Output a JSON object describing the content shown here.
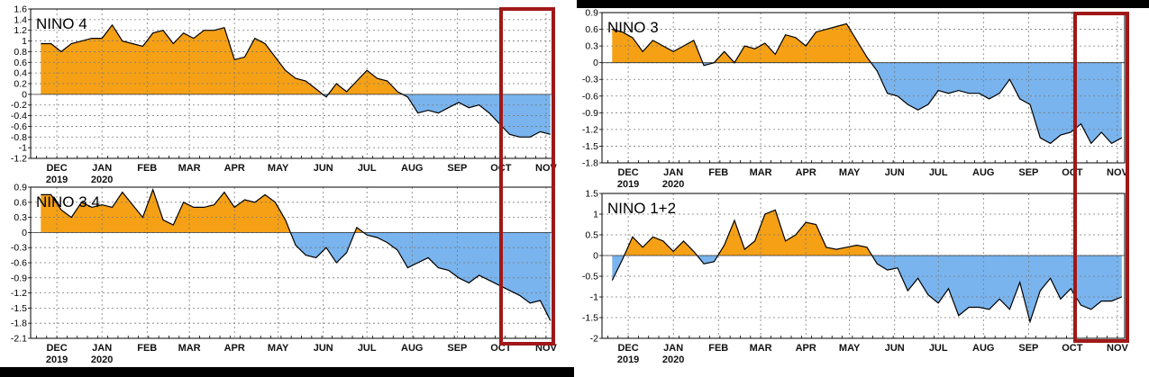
{
  "colors": {
    "positive": "#F5A015",
    "negative": "#79B4EE",
    "line": "#000000",
    "grid": "#7a7a7a",
    "highlight_box": "#A01818"
  },
  "chart_data": [
    {
      "type": "area",
      "title": "NINO 4",
      "x": [
        "2019-11-20",
        "2019-11-27",
        "2019-12-04",
        "2019-12-11",
        "2019-12-18",
        "2019-12-25",
        "2020-01-01",
        "2020-01-08",
        "2020-01-15",
        "2020-01-22",
        "2020-01-29",
        "2020-02-05",
        "2020-02-12",
        "2020-02-19",
        "2020-02-26",
        "2020-03-04",
        "2020-03-11",
        "2020-03-18",
        "2020-03-25",
        "2020-04-01",
        "2020-04-08",
        "2020-04-15",
        "2020-04-22",
        "2020-04-29",
        "2020-05-06",
        "2020-05-13",
        "2020-05-20",
        "2020-05-27",
        "2020-06-03",
        "2020-06-10",
        "2020-06-17",
        "2020-06-24",
        "2020-07-01",
        "2020-07-08",
        "2020-07-15",
        "2020-07-22",
        "2020-07-29",
        "2020-08-05",
        "2020-08-12",
        "2020-08-19",
        "2020-08-26",
        "2020-09-02",
        "2020-09-09",
        "2020-09-16",
        "2020-09-23",
        "2020-09-30",
        "2020-10-07",
        "2020-10-14",
        "2020-10-21",
        "2020-10-28",
        "2020-11-04"
      ],
      "values": [
        0.95,
        0.95,
        0.8,
        0.95,
        1.0,
        1.05,
        1.05,
        1.3,
        1.0,
        0.95,
        0.9,
        1.15,
        1.2,
        0.95,
        1.15,
        1.05,
        1.2,
        1.2,
        1.25,
        0.65,
        0.7,
        1.05,
        0.95,
        0.7,
        0.45,
        0.3,
        0.25,
        0.1,
        -0.05,
        0.2,
        0.05,
        0.25,
        0.45,
        0.3,
        0.25,
        0.05,
        -0.05,
        -0.35,
        -0.3,
        -0.35,
        -0.25,
        -0.15,
        -0.25,
        -0.2,
        -0.35,
        -0.55,
        -0.75,
        -0.8,
        -0.8,
        -0.7,
        -0.75
      ],
      "ylim": [
        -1.2,
        1.6
      ],
      "yticks": [
        "-1.2",
        "-1",
        "-0.8",
        "-0.6",
        "-0.4",
        "-0.2",
        "0",
        "0.2",
        "0.4",
        "0.6",
        "0.8",
        "1",
        "1.2",
        "1.4",
        "1.6"
      ],
      "xtick_labels": [
        {
          "label": "DEC",
          "year": "2019"
        },
        {
          "label": "JAN",
          "year": "2020"
        },
        {
          "label": "FEB",
          "year": ""
        },
        {
          "label": "MAR",
          "year": ""
        },
        {
          "label": "APR",
          "year": ""
        },
        {
          "label": "MAY",
          "year": ""
        },
        {
          "label": "JUN",
          "year": ""
        },
        {
          "label": "JUL",
          "year": ""
        },
        {
          "label": "AUG",
          "year": ""
        },
        {
          "label": "SEP",
          "year": ""
        },
        {
          "label": "OCT",
          "year": ""
        },
        {
          "label": "NOV",
          "year": ""
        }
      ],
      "grid": true,
      "highlight": "OCT–NOV"
    },
    {
      "type": "area",
      "title": "NINO 3.4",
      "x": [
        "2019-11-20",
        "2019-11-27",
        "2019-12-04",
        "2019-12-11",
        "2019-12-18",
        "2019-12-25",
        "2020-01-01",
        "2020-01-08",
        "2020-01-15",
        "2020-01-22",
        "2020-01-29",
        "2020-02-05",
        "2020-02-12",
        "2020-02-19",
        "2020-02-26",
        "2020-03-04",
        "2020-03-11",
        "2020-03-18",
        "2020-03-25",
        "2020-04-01",
        "2020-04-08",
        "2020-04-15",
        "2020-04-22",
        "2020-04-29",
        "2020-05-06",
        "2020-05-13",
        "2020-05-20",
        "2020-05-27",
        "2020-06-03",
        "2020-06-10",
        "2020-06-17",
        "2020-06-24",
        "2020-07-01",
        "2020-07-08",
        "2020-07-15",
        "2020-07-22",
        "2020-07-29",
        "2020-08-05",
        "2020-08-12",
        "2020-08-19",
        "2020-08-26",
        "2020-09-02",
        "2020-09-09",
        "2020-09-16",
        "2020-09-23",
        "2020-09-30",
        "2020-10-07",
        "2020-10-14",
        "2020-10-21",
        "2020-10-28",
        "2020-11-04"
      ],
      "values": [
        0.75,
        0.75,
        0.45,
        0.3,
        0.6,
        0.5,
        0.55,
        0.5,
        0.8,
        0.55,
        0.3,
        0.85,
        0.25,
        0.15,
        0.6,
        0.5,
        0.5,
        0.55,
        0.8,
        0.5,
        0.65,
        0.6,
        0.75,
        0.6,
        0.25,
        -0.25,
        -0.45,
        -0.5,
        -0.3,
        -0.6,
        -0.4,
        0.1,
        -0.05,
        -0.1,
        -0.2,
        -0.35,
        -0.7,
        -0.6,
        -0.5,
        -0.7,
        -0.75,
        -0.9,
        -1.0,
        -0.85,
        -0.95,
        -1.05,
        -1.15,
        -1.25,
        -1.4,
        -1.35,
        -1.75
      ],
      "ylim": [
        -2.1,
        0.9
      ],
      "yticks": [
        "-2.1",
        "-1.8",
        "-1.5",
        "-1.2",
        "-0.9",
        "-0.6",
        "-0.3",
        "0",
        "0.3",
        "0.6",
        "0.9"
      ],
      "xtick_labels": [
        {
          "label": "DEC",
          "year": "2019"
        },
        {
          "label": "JAN",
          "year": "2020"
        },
        {
          "label": "FEB",
          "year": ""
        },
        {
          "label": "MAR",
          "year": ""
        },
        {
          "label": "APR",
          "year": ""
        },
        {
          "label": "MAY",
          "year": ""
        },
        {
          "label": "JUN",
          "year": ""
        },
        {
          "label": "JUL",
          "year": ""
        },
        {
          "label": "AUG",
          "year": ""
        },
        {
          "label": "SEP",
          "year": ""
        },
        {
          "label": "OCT",
          "year": ""
        },
        {
          "label": "NOV",
          "year": ""
        }
      ],
      "grid": true,
      "highlight": "OCT–NOV"
    },
    {
      "type": "area",
      "title": "NINO 3",
      "x": [
        "2019-11-20",
        "2019-11-27",
        "2019-12-04",
        "2019-12-11",
        "2019-12-18",
        "2019-12-25",
        "2020-01-01",
        "2020-01-08",
        "2020-01-15",
        "2020-01-22",
        "2020-01-29",
        "2020-02-05",
        "2020-02-12",
        "2020-02-19",
        "2020-02-26",
        "2020-03-04",
        "2020-03-11",
        "2020-03-18",
        "2020-03-25",
        "2020-04-01",
        "2020-04-08",
        "2020-04-15",
        "2020-04-22",
        "2020-04-29",
        "2020-05-06",
        "2020-05-13",
        "2020-05-20",
        "2020-05-27",
        "2020-06-03",
        "2020-06-10",
        "2020-06-17",
        "2020-06-24",
        "2020-07-01",
        "2020-07-08",
        "2020-07-15",
        "2020-07-22",
        "2020-07-29",
        "2020-08-05",
        "2020-08-12",
        "2020-08-19",
        "2020-08-26",
        "2020-09-02",
        "2020-09-09",
        "2020-09-16",
        "2020-09-23",
        "2020-09-30",
        "2020-10-07",
        "2020-10-14",
        "2020-10-21",
        "2020-10-28",
        "2020-11-04"
      ],
      "values": [
        0.6,
        0.55,
        0.45,
        0.2,
        0.4,
        0.3,
        0.2,
        0.3,
        0.4,
        -0.05,
        0.0,
        0.2,
        0.0,
        0.3,
        0.25,
        0.35,
        0.15,
        0.5,
        0.45,
        0.3,
        0.55,
        0.6,
        0.65,
        0.7,
        0.4,
        0.1,
        -0.15,
        -0.55,
        -0.6,
        -0.75,
        -0.85,
        -0.75,
        -0.5,
        -0.55,
        -0.5,
        -0.55,
        -0.55,
        -0.65,
        -0.55,
        -0.3,
        -0.65,
        -0.75,
        -1.35,
        -1.45,
        -1.3,
        -1.25,
        -1.1,
        -1.45,
        -1.25,
        -1.45,
        -1.35
      ],
      "ylim": [
        -1.8,
        0.9
      ],
      "yticks": [
        "-1.8",
        "-1.5",
        "-1.2",
        "-0.9",
        "-0.6",
        "-0.3",
        "0",
        "0.3",
        "0.6",
        "0.9"
      ],
      "xtick_labels": [
        {
          "label": "DEC",
          "year": "2019"
        },
        {
          "label": "JAN",
          "year": "2020"
        },
        {
          "label": "FEB",
          "year": ""
        },
        {
          "label": "MAR",
          "year": ""
        },
        {
          "label": "APR",
          "year": ""
        },
        {
          "label": "MAY",
          "year": ""
        },
        {
          "label": "JUN",
          "year": ""
        },
        {
          "label": "JUL",
          "year": ""
        },
        {
          "label": "AUG",
          "year": ""
        },
        {
          "label": "SEP",
          "year": ""
        },
        {
          "label": "OCT",
          "year": ""
        },
        {
          "label": "NOV",
          "year": ""
        }
      ],
      "grid": true,
      "highlight": "OCT–NOV"
    },
    {
      "type": "area",
      "title": "NINO 1+2",
      "x": [
        "2019-11-20",
        "2019-11-27",
        "2019-12-04",
        "2019-12-11",
        "2019-12-18",
        "2019-12-25",
        "2020-01-01",
        "2020-01-08",
        "2020-01-15",
        "2020-01-22",
        "2020-01-29",
        "2020-02-05",
        "2020-02-12",
        "2020-02-19",
        "2020-02-26",
        "2020-03-04",
        "2020-03-11",
        "2020-03-18",
        "2020-03-25",
        "2020-04-01",
        "2020-04-08",
        "2020-04-15",
        "2020-04-22",
        "2020-04-29",
        "2020-05-06",
        "2020-05-13",
        "2020-05-20",
        "2020-05-27",
        "2020-06-03",
        "2020-06-10",
        "2020-06-17",
        "2020-06-24",
        "2020-07-01",
        "2020-07-08",
        "2020-07-15",
        "2020-07-22",
        "2020-07-29",
        "2020-08-05",
        "2020-08-12",
        "2020-08-19",
        "2020-08-26",
        "2020-09-02",
        "2020-09-09",
        "2020-09-16",
        "2020-09-23",
        "2020-09-30",
        "2020-10-07",
        "2020-10-14",
        "2020-10-21",
        "2020-10-28",
        "2020-11-04"
      ],
      "values": [
        -0.6,
        -0.1,
        0.45,
        0.2,
        0.45,
        0.35,
        0.1,
        0.35,
        0.1,
        -0.2,
        -0.15,
        0.25,
        0.85,
        0.15,
        0.35,
        1.0,
        1.1,
        0.35,
        0.5,
        0.8,
        0.75,
        0.2,
        0.15,
        0.2,
        0.25,
        0.2,
        -0.2,
        -0.35,
        -0.3,
        -0.85,
        -0.55,
        -0.95,
        -1.15,
        -0.8,
        -1.45,
        -1.25,
        -1.25,
        -1.3,
        -1.05,
        -1.3,
        -0.65,
        -1.6,
        -0.85,
        -0.55,
        -1.05,
        -0.8,
        -1.2,
        -1.3,
        -1.1,
        -1.1,
        -1.0
      ],
      "ylim": [
        -2.0,
        1.5
      ],
      "yticks": [
        "-2",
        "-1.5",
        "-1",
        "-0.5",
        "0",
        "0.5",
        "1",
        "1.5"
      ],
      "xtick_labels": [
        {
          "label": "DEC",
          "year": "2019"
        },
        {
          "label": "JAN",
          "year": "2020"
        },
        {
          "label": "FEB",
          "year": ""
        },
        {
          "label": "MAR",
          "year": ""
        },
        {
          "label": "APR",
          "year": ""
        },
        {
          "label": "MAY",
          "year": ""
        },
        {
          "label": "JUN",
          "year": ""
        },
        {
          "label": "JUL",
          "year": ""
        },
        {
          "label": "AUG",
          "year": ""
        },
        {
          "label": "SEP",
          "year": ""
        },
        {
          "label": "OCT",
          "year": ""
        },
        {
          "label": "NOV",
          "year": ""
        }
      ],
      "grid": true,
      "highlight": "OCT–NOV"
    }
  ]
}
